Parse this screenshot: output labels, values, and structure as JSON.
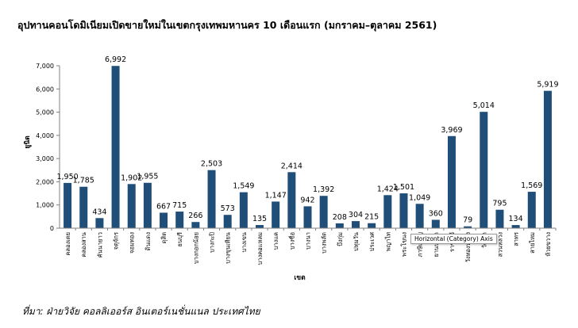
{
  "title": "อุปทานคอนโดมิเนียมเปิดขายใหม่ในเขตกรุงเทพมหานคร 10 เดือนแรก (มกราคม–ตุลาคม  2561)",
  "source": "ที่มา: ฝ่ายวิจัย คอลลิเออร์ส อินเตอร์เนชั่นแนล ประเทศไทย",
  "tooltip": "Horizontal (Category) Axis",
  "colors": {
    "bar": "#1f4e79",
    "axis": "#808080",
    "grid": "#d9d9d9"
  },
  "chart_data": {
    "type": "bar",
    "title": "อุปทานคอนโดมิเนียมเปิดขายใหม่ในเขตกรุงเทพมหานคร 10 เดือนแรก (มกราคม–ตุลาคม  2561)",
    "xlabel": "เขต",
    "ylabel": "ยูนิต",
    "ylim": [
      0,
      7000
    ],
    "yticks": [
      "0",
      "1,000",
      "2,000",
      "3,000",
      "4,000",
      "5,000",
      "6,000",
      "7,000"
    ],
    "grid": false,
    "categories": [
      "คลองเตย",
      "คลองสาน",
      "คันนายาว",
      "จตุจักร",
      "จอมทอง",
      "ดินแดง",
      "ดุสิต",
      "ธนบุรี",
      "บางกอกน้อย",
      "บางกะปิ",
      "บางขุนเทียน",
      "บางเขน",
      "บางคอแหลม",
      "บางแค",
      "บางซื่อ",
      "บางนา",
      "บางพลัด",
      "บึงกุ่ม",
      "ปทุมวัน",
      "ประเวศ",
      "พญาไท",
      "พระโขนง",
      "ภาษีเจริญ",
      "ยานนาวา",
      "ราชเทวี",
      "วังทองหลาง",
      "วัฒนา",
      "สวนหลวง",
      "สาทร",
      "สายไหม",
      "ห้วยขวาง"
    ],
    "values": [
      1950,
      1785,
      434,
      6992,
      1902,
      1955,
      667,
      715,
      266,
      2503,
      573,
      1549,
      135,
      1147,
      2414,
      942,
      1392,
      208,
      304,
      215,
      1424,
      1501,
      1049,
      360,
      3969,
      79,
      5014,
      795,
      134,
      1569,
      5919
    ],
    "value_labels": [
      "1,950",
      "1,785",
      "434",
      "6,992",
      "1,902",
      "1,955",
      "667",
      "715",
      "266",
      "2,503",
      "573",
      "1,549",
      "135",
      "1,147",
      "2,414",
      "942",
      "1,392",
      "208",
      "304",
      "215",
      "1,424",
      "1,501",
      "1,049",
      "360",
      "3,969",
      "79",
      "5,014",
      "795",
      "134",
      "1,569",
      "5,919"
    ]
  }
}
